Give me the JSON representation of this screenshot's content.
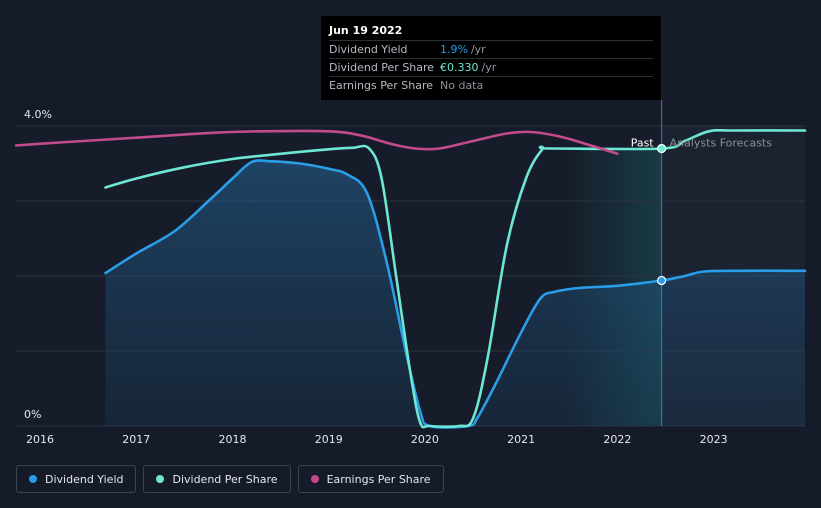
{
  "colors": {
    "background": "#151b28",
    "dividend_yield": "#2a9de8",
    "dividend_per_share": "#6ee7d2",
    "earnings_per_share": "#c24b8c",
    "grid": "#2c3340"
  },
  "tooltip": {
    "date": "Jun 19 2022",
    "rows": [
      {
        "label": "Dividend Yield",
        "value": "1.9%",
        "unit": "/yr",
        "color": "#2a9de8"
      },
      {
        "label": "Dividend Per Share",
        "value": "€0.330",
        "unit": "/yr",
        "color": "#6ee7d2"
      },
      {
        "label": "Earnings Per Share",
        "value": "No data",
        "unit": "",
        "color": "#8d939c"
      }
    ]
  },
  "legend": [
    {
      "label": "Dividend Yield",
      "color": "#2a9de8"
    },
    {
      "label": "Dividend Per Share",
      "color": "#6ee7d2"
    },
    {
      "label": "Earnings Per Share",
      "color": "#c24b8c"
    }
  ],
  "chart_data": {
    "type": "line",
    "y_tick_labels": [
      "4.0%",
      "0%"
    ],
    "ylim": [
      0,
      4.0
    ],
    "xlim": [
      2015.75,
      2023.95
    ],
    "x_ticks": [
      2016,
      2017,
      2018,
      2019,
      2020,
      2021,
      2022,
      2023
    ],
    "x_tick_labels": [
      "2016",
      "2017",
      "2018",
      "2019",
      "2020",
      "2021",
      "2022",
      "2023"
    ],
    "grid": true,
    "past_label": "Past",
    "forecast_label": "Analysts Forecasts",
    "forecast_start": 2022.46,
    "series": [
      {
        "name": "Dividend Yield",
        "color": "#2a9de8",
        "area": true,
        "points": [
          [
            2016.68,
            2.04
          ],
          [
            2017.0,
            2.3
          ],
          [
            2017.4,
            2.6
          ],
          [
            2017.75,
            3.0
          ],
          [
            2018.0,
            3.3
          ],
          [
            2018.2,
            3.52
          ],
          [
            2018.4,
            3.53
          ],
          [
            2018.7,
            3.5
          ],
          [
            2019.0,
            3.43
          ],
          [
            2019.2,
            3.35
          ],
          [
            2019.4,
            3.1
          ],
          [
            2019.6,
            2.2
          ],
          [
            2019.8,
            1.0
          ],
          [
            2019.95,
            0.2
          ],
          [
            2020.05,
            0.0
          ],
          [
            2020.45,
            0.0
          ],
          [
            2020.55,
            0.12
          ],
          [
            2020.75,
            0.6
          ],
          [
            2021.0,
            1.25
          ],
          [
            2021.2,
            1.7
          ],
          [
            2021.35,
            1.79
          ],
          [
            2021.6,
            1.84
          ],
          [
            2022.0,
            1.87
          ],
          [
            2022.46,
            1.94
          ],
          [
            2022.7,
            2.0
          ],
          [
            2022.9,
            2.06
          ],
          [
            2023.3,
            2.07
          ],
          [
            2023.95,
            2.07
          ]
        ]
      },
      {
        "name": "Dividend Per Share",
        "color": "#6ee7d2",
        "area": false,
        "points": [
          [
            2016.68,
            3.18
          ],
          [
            2017.0,
            3.3
          ],
          [
            2017.5,
            3.45
          ],
          [
            2018.0,
            3.56
          ],
          [
            2018.5,
            3.63
          ],
          [
            2019.0,
            3.69
          ],
          [
            2019.25,
            3.71
          ],
          [
            2019.42,
            3.7
          ],
          [
            2019.55,
            3.3
          ],
          [
            2019.7,
            2.0
          ],
          [
            2019.85,
            0.7
          ],
          [
            2019.95,
            0.05
          ],
          [
            2020.05,
            0.0
          ],
          [
            2020.35,
            0.0
          ],
          [
            2020.5,
            0.1
          ],
          [
            2020.65,
            0.9
          ],
          [
            2020.85,
            2.4
          ],
          [
            2021.05,
            3.3
          ],
          [
            2021.22,
            3.69
          ],
          [
            2021.3,
            3.7
          ],
          [
            2022.46,
            3.7
          ],
          [
            2022.7,
            3.8
          ],
          [
            2022.95,
            3.93
          ],
          [
            2023.2,
            3.94
          ],
          [
            2023.95,
            3.94
          ]
        ]
      },
      {
        "name": "Earnings Per Share",
        "color": "#c24b8c",
        "area": false,
        "points": [
          [
            2015.75,
            3.74
          ],
          [
            2016.2,
            3.78
          ],
          [
            2016.7,
            3.82
          ],
          [
            2017.3,
            3.87
          ],
          [
            2017.8,
            3.91
          ],
          [
            2018.3,
            3.93
          ],
          [
            2019.0,
            3.93
          ],
          [
            2019.35,
            3.87
          ],
          [
            2019.65,
            3.76
          ],
          [
            2019.9,
            3.7
          ],
          [
            2020.15,
            3.7
          ],
          [
            2020.5,
            3.8
          ],
          [
            2020.85,
            3.9
          ],
          [
            2021.1,
            3.92
          ],
          [
            2021.4,
            3.86
          ],
          [
            2021.7,
            3.75
          ],
          [
            2022.0,
            3.63
          ]
        ]
      }
    ],
    "markers": [
      {
        "series": "Dividend Yield",
        "x": 2022.46,
        "y": 1.94
      },
      {
        "series": "Dividend Per Share",
        "x": 2022.46,
        "y": 3.7
      }
    ]
  }
}
